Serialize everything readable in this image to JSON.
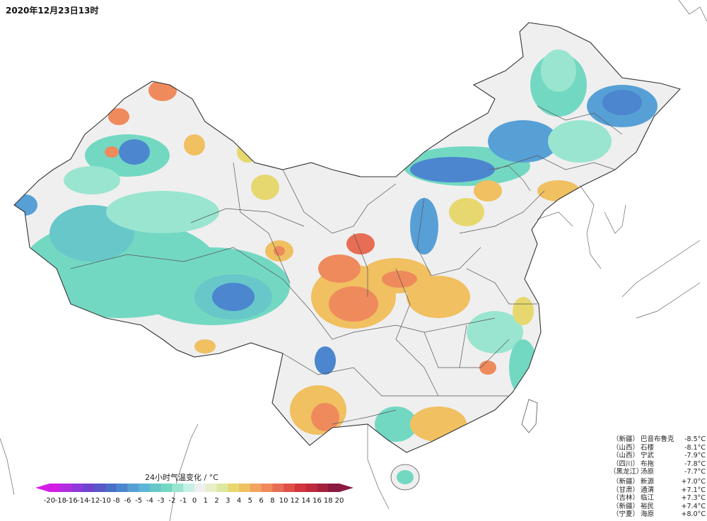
{
  "timestamp": "2020年12月23日13时",
  "legend": {
    "title": "24小时气温变化 / °C",
    "ticks": [
      "-20",
      "-18",
      "-16",
      "-14",
      "-12",
      "-10",
      "-8",
      "-6",
      "-5",
      "-4",
      "-3",
      "-2",
      "-1",
      "0",
      "1",
      "2",
      "3",
      "4",
      "5",
      "6",
      "8",
      "10",
      "12",
      "14",
      "16",
      "18",
      "20"
    ],
    "colors": [
      "#d21ee6",
      "#b22fe0",
      "#8f3bd9",
      "#6f45cf",
      "#5a57c6",
      "#4a6fc8",
      "#4b86cf",
      "#57a0d6",
      "#5bb7d6",
      "#67c7c9",
      "#73d8c2",
      "#9ae5d0",
      "#c6f0e4",
      "#efefef",
      "#e8efc8",
      "#dde8a0",
      "#e6d86e",
      "#f0c061",
      "#f2a35f",
      "#ef8a5d",
      "#e86d55",
      "#e05048",
      "#d2363d",
      "#bd2a3c",
      "#a4213e",
      "#8b1a40"
    ]
  },
  "stats_cold": [
    {
      "province": "（新疆）",
      "station": "巴音布鲁克",
      "value": "-8.5°C"
    },
    {
      "province": "（山西）",
      "station": "石楼",
      "value": "-8.1°C"
    },
    {
      "province": "（山西）",
      "station": "宁武",
      "value": "-7.9°C"
    },
    {
      "province": "（四川）",
      "station": "布拖",
      "value": "-7.8°C"
    },
    {
      "province": "（黑龙江）",
      "station": "汤原",
      "value": "-7.7°C"
    }
  ],
  "stats_warm": [
    {
      "province": "（新疆）",
      "station": "新源",
      "value": "+7.0°C"
    },
    {
      "province": "（甘肃）",
      "station": "通渭",
      "value": "+7.1°C"
    },
    {
      "province": "（吉林）",
      "station": "临江",
      "value": "+7.3°C"
    },
    {
      "province": "（新疆）",
      "station": "裕民",
      "value": "+7.4°C"
    },
    {
      "province": "（宁夏）",
      "station": "海原",
      "value": "+8.0°C"
    }
  ]
}
